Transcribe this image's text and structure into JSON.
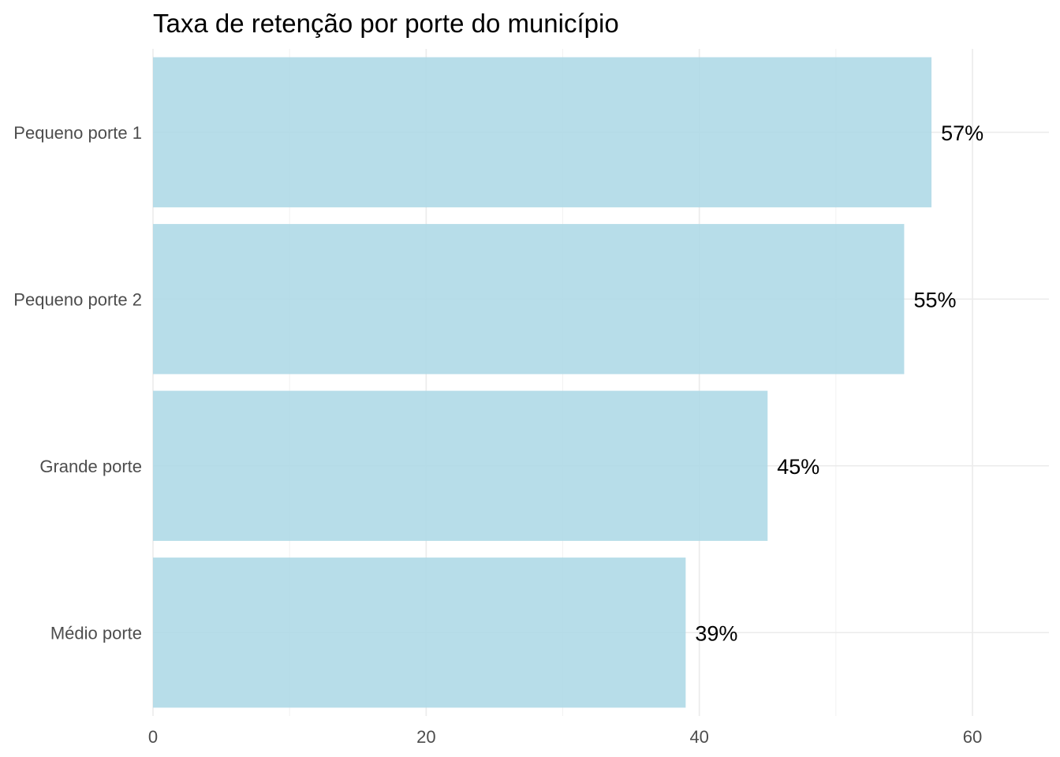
{
  "chart_data": {
    "type": "bar",
    "orientation": "horizontal",
    "title": "Taxa de retenção por porte do município",
    "xlabel": "",
    "ylabel": "",
    "categories": [
      "Pequeno porte 1",
      "Pequeno porte 2",
      "Grande porte",
      "Médio porte"
    ],
    "values": [
      57,
      55,
      45,
      39
    ],
    "data_labels": [
      "57%",
      "55%",
      "45%",
      "39%"
    ],
    "xlim": [
      0,
      65.6
    ],
    "x_ticks": [
      0,
      20,
      40,
      60
    ],
    "x_tick_labels": [
      "0",
      "20",
      "40",
      "60"
    ],
    "grid": true,
    "legend": "none",
    "bar_color": "#add8e6"
  }
}
